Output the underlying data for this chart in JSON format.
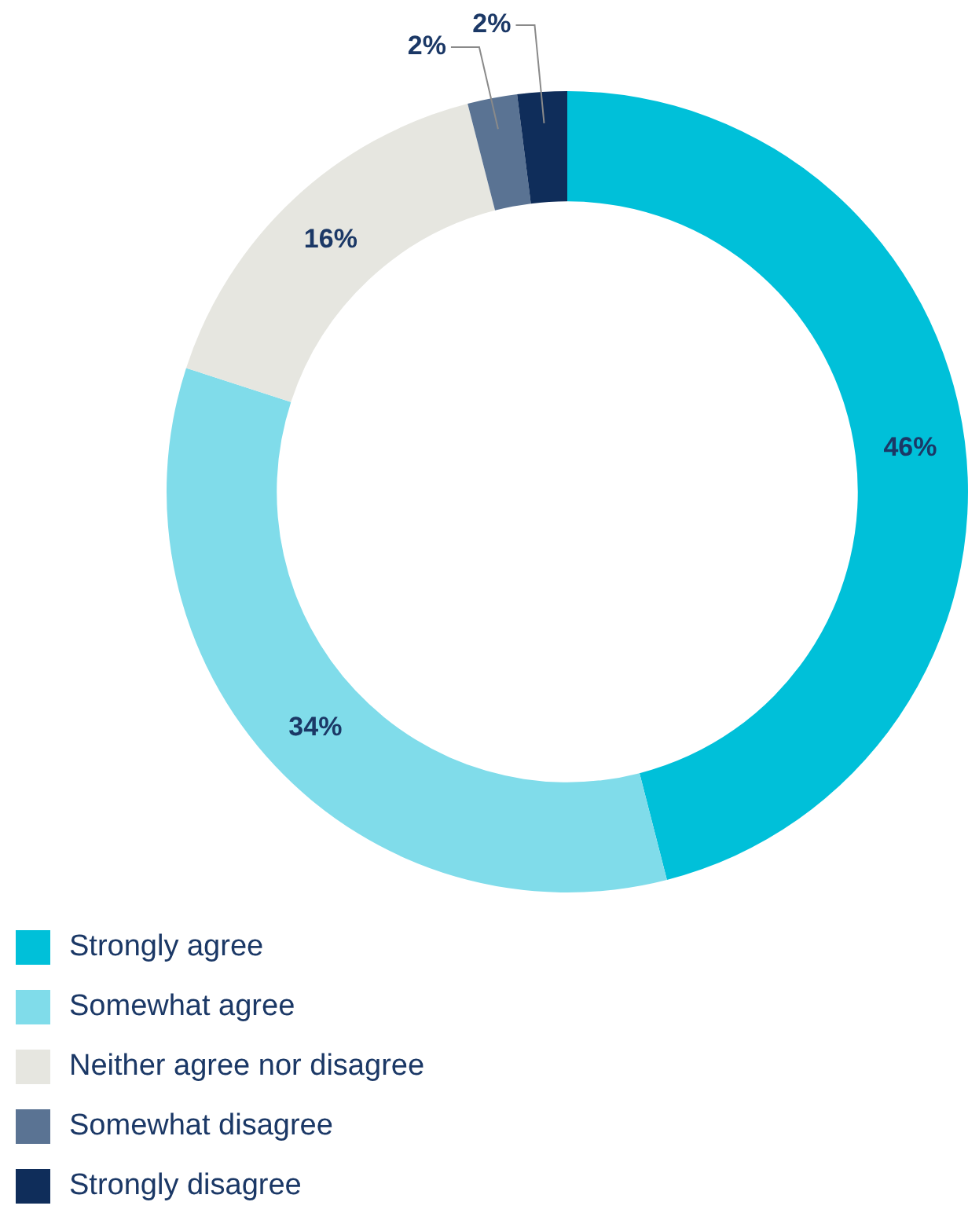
{
  "chart_data": {
    "type": "donut",
    "categories": [
      "Strongly agree",
      "Somewhat agree",
      "Neither agree nor disagree",
      "Somewhat disagree",
      "Strongly disagree"
    ],
    "values": [
      46,
      34,
      16,
      2,
      2
    ],
    "colors": [
      "#00c0d9",
      "#80dcea",
      "#e6e6e0",
      "#5a7393",
      "#0f2d5a"
    ],
    "value_labels": [
      "46%",
      "34%",
      "16%",
      "2%",
      "2%"
    ],
    "legend": "bottom"
  }
}
